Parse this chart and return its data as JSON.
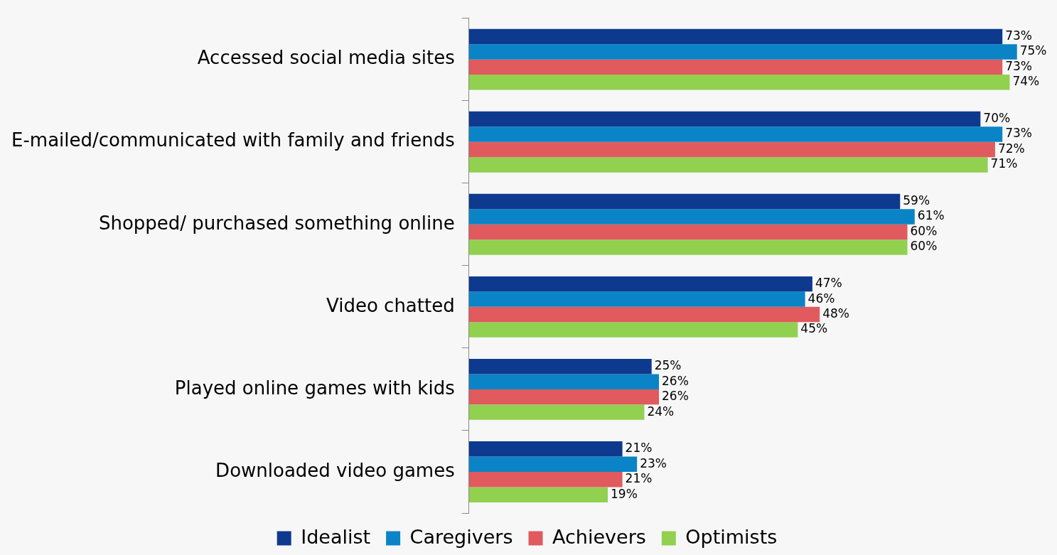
{
  "chart_data": {
    "type": "bar",
    "orientation": "horizontal",
    "legend": "bottom",
    "categories": [
      "Accessed social media sites",
      "E-mailed/communicated with family and friends",
      "Shopped/ purchased something online",
      "Video chatted",
      "Played online games with kids",
      "Downloaded video games"
    ],
    "series": [
      {
        "name": "Idealist",
        "color": "#0d3a8e",
        "values": [
          73,
          70,
          59,
          47,
          25,
          21
        ],
        "value_labels": [
          "73%",
          "70%",
          "59%",
          "47%",
          "25%",
          "21%"
        ]
      },
      {
        "name": "Caregivers",
        "color": "#0a84c6",
        "values": [
          75,
          73,
          61,
          46,
          26,
          23
        ],
        "value_labels": [
          "75%",
          "73%",
          "61%",
          "46%",
          "26%",
          "23%"
        ]
      },
      {
        "name": "Achievers",
        "color": "#e05a5e",
        "values": [
          73,
          72,
          60,
          48,
          26,
          21
        ],
        "value_labels": [
          "73%",
          "72%",
          "60%",
          "48%",
          "26%",
          "21%"
        ]
      },
      {
        "name": "Optimists",
        "color": "#92d050",
        "values": [
          74,
          71,
          60,
          45,
          24,
          19
        ],
        "value_labels": [
          "74%",
          "71%",
          "60%",
          "45%",
          "24%",
          "19%"
        ]
      }
    ]
  }
}
